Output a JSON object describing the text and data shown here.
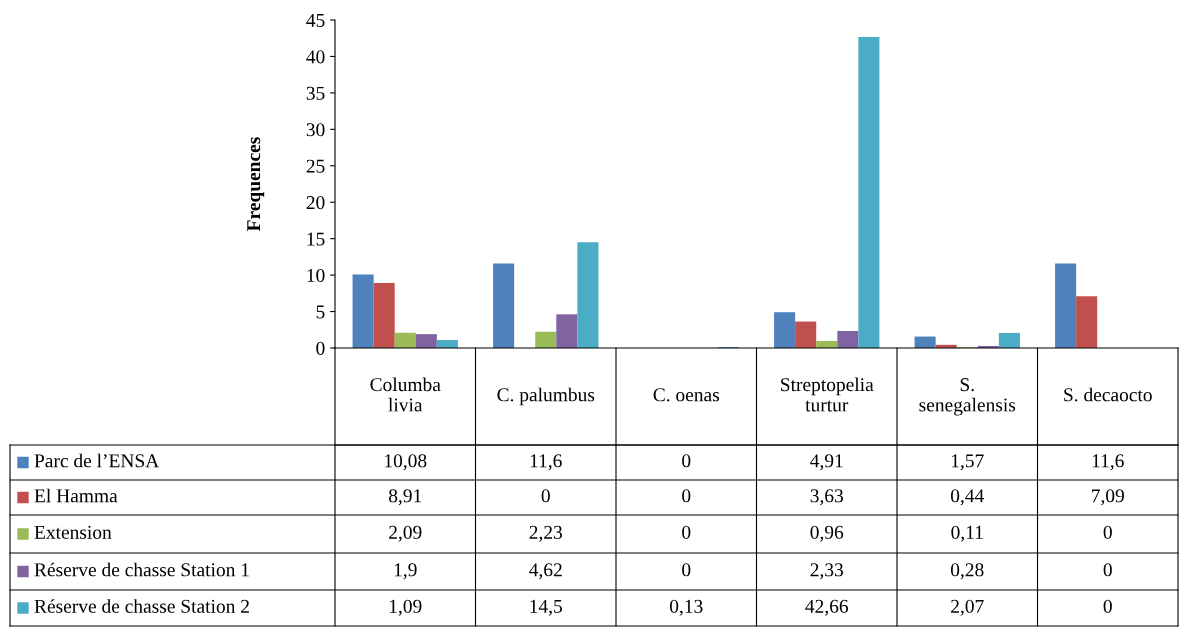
{
  "chart_data": {
    "type": "bar",
    "ylabel": "Frequences",
    "categories": [
      "Columba livia",
      "C. palumbus",
      "C. oenas",
      "Streptopelia turtur",
      "S. senegalensis",
      "S. decaocto"
    ],
    "series": [
      {
        "name": "Parc de l’ENSA",
        "color": "#4f81bd",
        "values": [
          10.08,
          11.6,
          0,
          4.91,
          1.57,
          11.6
        ],
        "value_labels": [
          "10,08",
          "11,6",
          "0",
          "4,91",
          "1,57",
          "11,6"
        ]
      },
      {
        "name": "El Hamma",
        "color": "#c0504d",
        "values": [
          8.91,
          0,
          0,
          3.63,
          0.44,
          7.09
        ],
        "value_labels": [
          "8,91",
          "0",
          "0",
          "3,63",
          "0,44",
          "7,09"
        ]
      },
      {
        "name": "Extension",
        "color": "#9bbb59",
        "values": [
          2.09,
          2.23,
          0,
          0.96,
          0.11,
          0
        ],
        "value_labels": [
          "2,09",
          "2,23",
          "0",
          "0,96",
          "0,11",
          "0"
        ]
      },
      {
        "name": "Réserve de chasse Station 1",
        "color": "#8064a2",
        "values": [
          1.9,
          4.62,
          0,
          2.33,
          0.28,
          0
        ],
        "value_labels": [
          "1,9",
          "4,62",
          "0",
          "2,33",
          "0,28",
          "0"
        ]
      },
      {
        "name": "Réserve de chasse Station 2",
        "color": "#4bacc6",
        "values": [
          1.09,
          14.5,
          0.13,
          42.66,
          2.07,
          0
        ],
        "value_labels": [
          "1,09",
          "14,5",
          "0,13",
          "42,66",
          "2,07",
          "0"
        ]
      }
    ],
    "ylim": [
      0,
      45
    ],
    "yticks": [
      0,
      5,
      10,
      15,
      20,
      25,
      30,
      35,
      40,
      45
    ],
    "grid": false,
    "legend": "bottom"
  }
}
